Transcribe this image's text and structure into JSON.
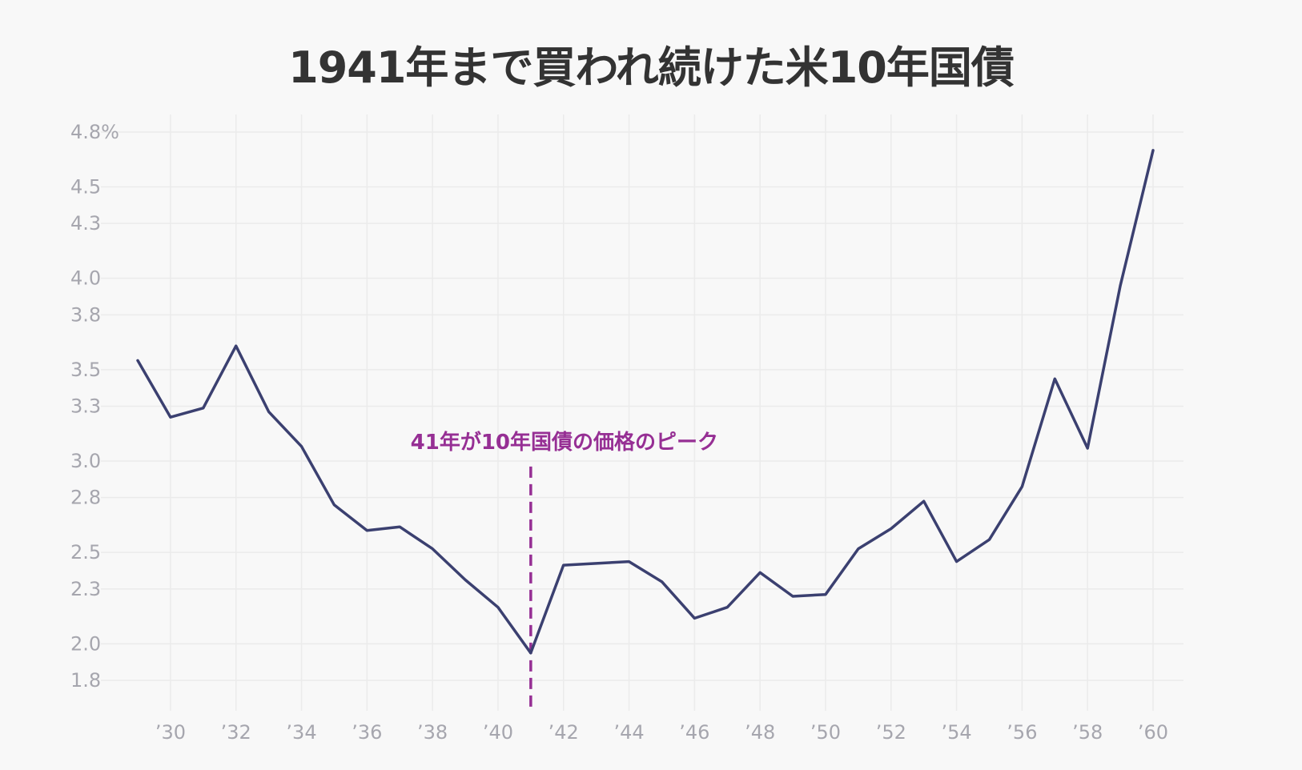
{
  "chart_data": {
    "type": "line",
    "title": "1941年まで買われ続けた米10年国債",
    "xlabel": "",
    "ylabel": "",
    "x": [
      1929,
      1930,
      1931,
      1932,
      1933,
      1934,
      1935,
      1936,
      1937,
      1938,
      1939,
      1940,
      1941,
      1942,
      1943,
      1944,
      1945,
      1946,
      1947,
      1948,
      1949,
      1950,
      1951,
      1952,
      1953,
      1954,
      1955,
      1956,
      1957,
      1958,
      1959,
      1960
    ],
    "series": [
      {
        "values": [
          3.55,
          3.24,
          3.29,
          3.63,
          3.27,
          3.08,
          2.76,
          2.62,
          2.64,
          2.52,
          2.35,
          2.2,
          1.95,
          2.43,
          2.44,
          2.45,
          2.34,
          2.14,
          2.2,
          2.39,
          2.26,
          2.27,
          2.52,
          2.63,
          2.78,
          2.45,
          2.57,
          2.86,
          3.45,
          3.07,
          3.96,
          4.7
        ],
        "color": "#3b4070"
      }
    ],
    "xlim": [
      1928,
      1961
    ],
    "ylim": [
      1.6,
      4.9
    ],
    "y_ticks": [
      1.8,
      2.0,
      2.3,
      2.5,
      2.8,
      3.0,
      3.3,
      3.5,
      3.8,
      4.0,
      4.3,
      4.5,
      4.8
    ],
    "y_tick_labels": [
      "1.8",
      "2.0",
      "2.3",
      "2.5",
      "2.8",
      "3.0",
      "3.3",
      "3.5",
      "3.8",
      "4.0",
      "4.3",
      "4.5",
      "4.8%"
    ],
    "x_ticks": [
      1930,
      1932,
      1934,
      1936,
      1938,
      1940,
      1942,
      1944,
      1946,
      1948,
      1950,
      1952,
      1954,
      1956,
      1958,
      1960
    ],
    "x_tick_labels": [
      "’30",
      "’32",
      "’34",
      "’36",
      "’38",
      "’40",
      "’42",
      "’44",
      "’46",
      "’48",
      "’50",
      "’52",
      "’54",
      "’56",
      "’58",
      "’60"
    ],
    "grid": true,
    "annotation": {
      "x": 1941,
      "y_from": 1.6,
      "y_to": 2.97,
      "text": "41年が10年国債の価格のピーク",
      "color": "#962f94"
    },
    "colors": {
      "background": "#f8f8f8",
      "grid": "#ebebeb",
      "line": "#3b4070",
      "tick_text": "#a6a6ae",
      "title_text": "#333333",
      "annotation": "#962f94"
    }
  }
}
